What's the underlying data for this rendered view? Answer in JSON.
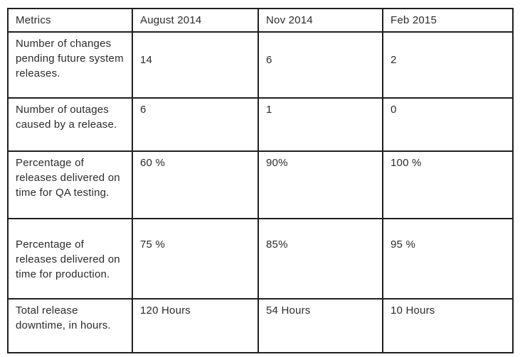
{
  "table": {
    "headers": [
      "Metrics",
      "August 2014",
      "Nov 2014",
      "Feb 2015"
    ],
    "rows": [
      {
        "metric": "Number of changes pending future system releases.",
        "values": [
          "14",
          "6",
          "2"
        ]
      },
      {
        "metric": "Number of outages caused by a release.",
        "values": [
          "6",
          "1",
          "0"
        ]
      },
      {
        "metric": "Percentage of releases delivered on time for QA testing.",
        "values": [
          "60 %",
          "90%",
          "100 %"
        ]
      },
      {
        "metric": "Percentage of releases delivered on time for production.",
        "values": [
          "75 %",
          "85%",
          "95 %"
        ]
      },
      {
        "metric": "Total release downtime, in hours.",
        "values": [
          "120 Hours",
          "54 Hours",
          "10 Hours"
        ]
      }
    ],
    "colors": {
      "border": "#1f1f1f",
      "text": "#2b2b2b",
      "background": "#ffffff"
    }
  }
}
